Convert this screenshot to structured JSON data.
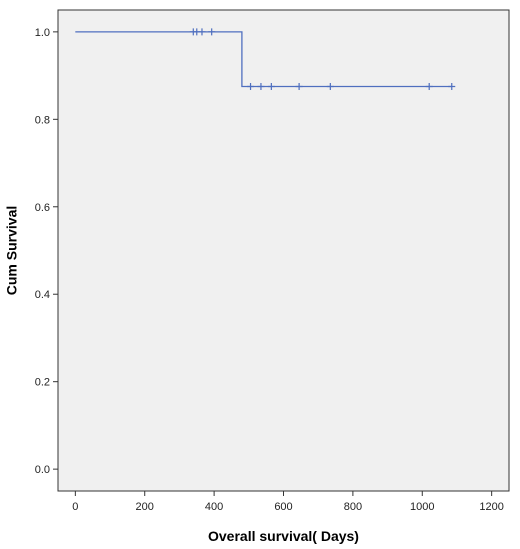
{
  "chart_data": {
    "type": "line",
    "xlabel": "Overall survival( Days)",
    "ylabel": "Cum Survival",
    "xlim": [
      -50,
      1250
    ],
    "ylim": [
      -0.05,
      1.05
    ],
    "x_ticks": [
      0,
      200,
      400,
      600,
      800,
      1000,
      1200
    ],
    "x_tick_labels": [
      "0",
      "200",
      "400",
      "600",
      "800",
      "1000",
      "1200"
    ],
    "y_ticks": [
      0.0,
      0.2,
      0.4,
      0.6,
      0.8,
      1.0
    ],
    "y_tick_labels": [
      "0.0",
      "0.2",
      "0.4",
      "0.6",
      "0.8",
      "1.0"
    ],
    "grid": false,
    "series": [
      {
        "step_points": [
          [
            0,
            1.0
          ],
          [
            480,
            1.0
          ],
          [
            480,
            0.875
          ],
          [
            1085,
            0.875
          ]
        ],
        "censored": [
          [
            340,
            1.0
          ],
          [
            350,
            1.0
          ],
          [
            365,
            1.0
          ],
          [
            393,
            1.0
          ],
          [
            505,
            0.875
          ],
          [
            535,
            0.875
          ],
          [
            565,
            0.875
          ],
          [
            645,
            0.875
          ],
          [
            735,
            0.875
          ],
          [
            1020,
            0.875
          ],
          [
            1085,
            0.875
          ]
        ]
      }
    ],
    "colors": {
      "line": "#4f6fbf",
      "plot_bg": "#f0f0f0",
      "frame": "#333333"
    }
  }
}
